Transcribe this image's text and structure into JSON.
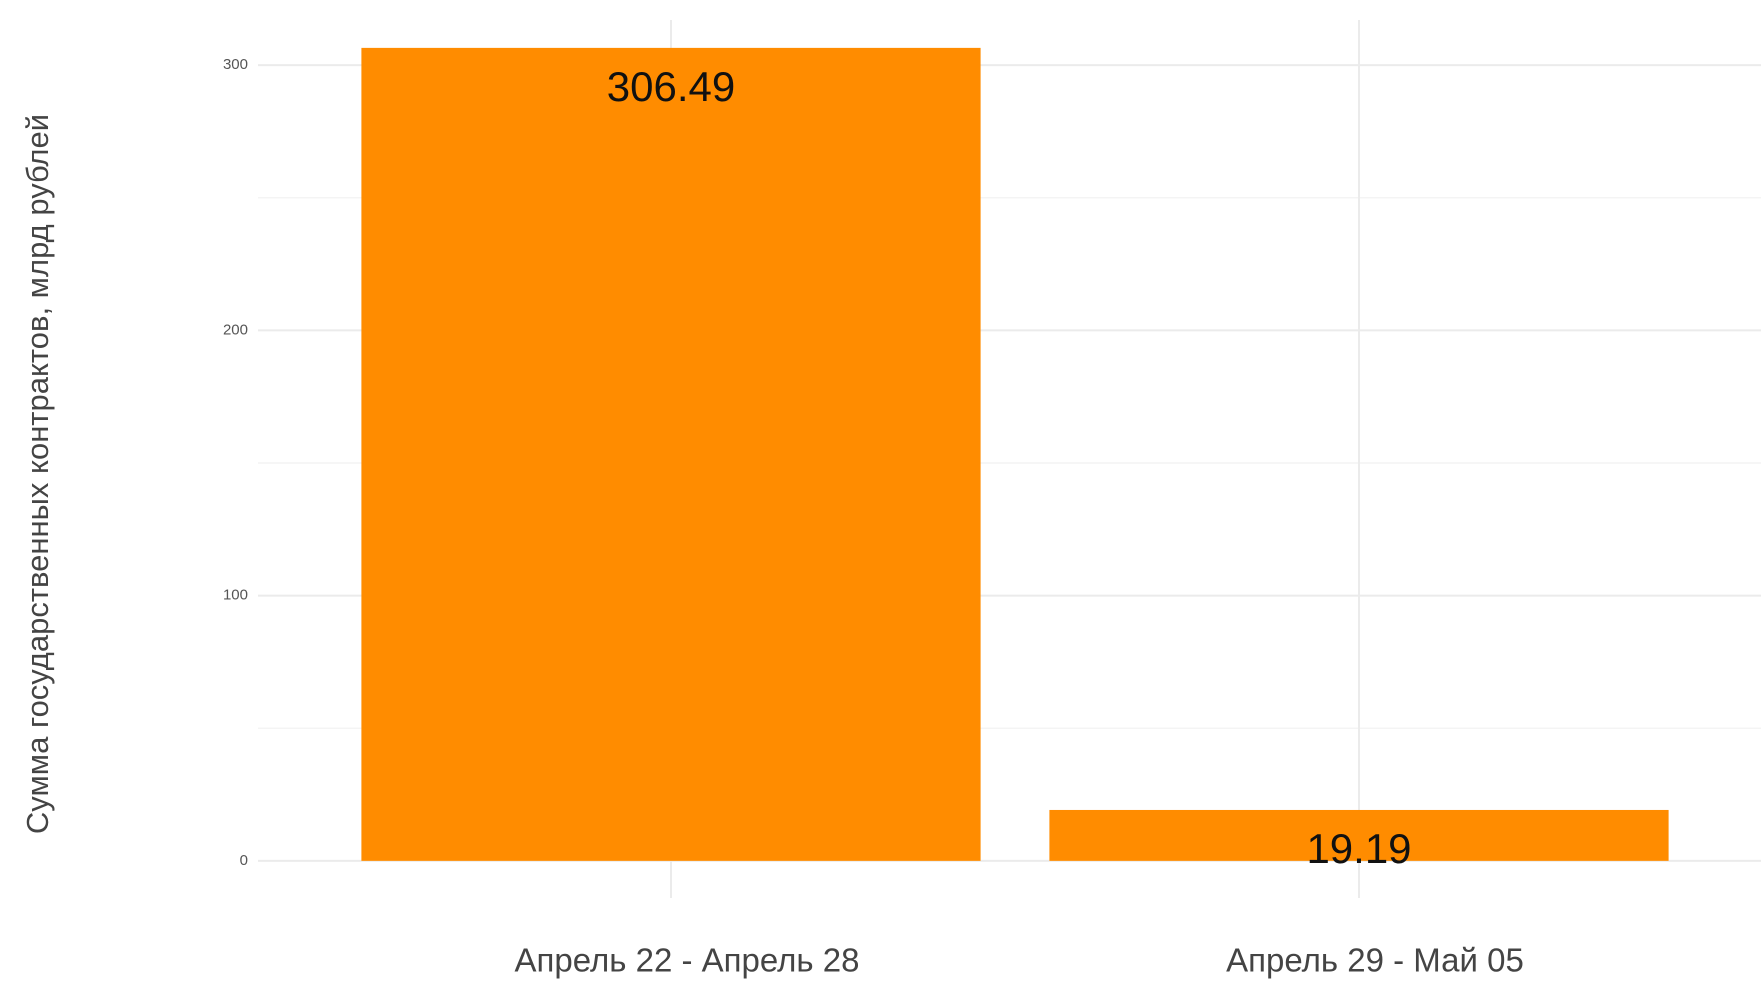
{
  "chart_data": {
    "type": "bar",
    "y_label": "Сумма государственных контрактов, млрд рублей",
    "categories": [
      "Апрель 22 - Апрель 28",
      "Апрель 29 - Май 05"
    ],
    "values": [
      306.49,
      19.19
    ],
    "color": "#ff8c00",
    "ylim": [
      -14,
      317
    ],
    "yticks": [
      0,
      100,
      200,
      300
    ],
    "minor_yticks": [
      50,
      150,
      250
    ],
    "grid": true
  }
}
